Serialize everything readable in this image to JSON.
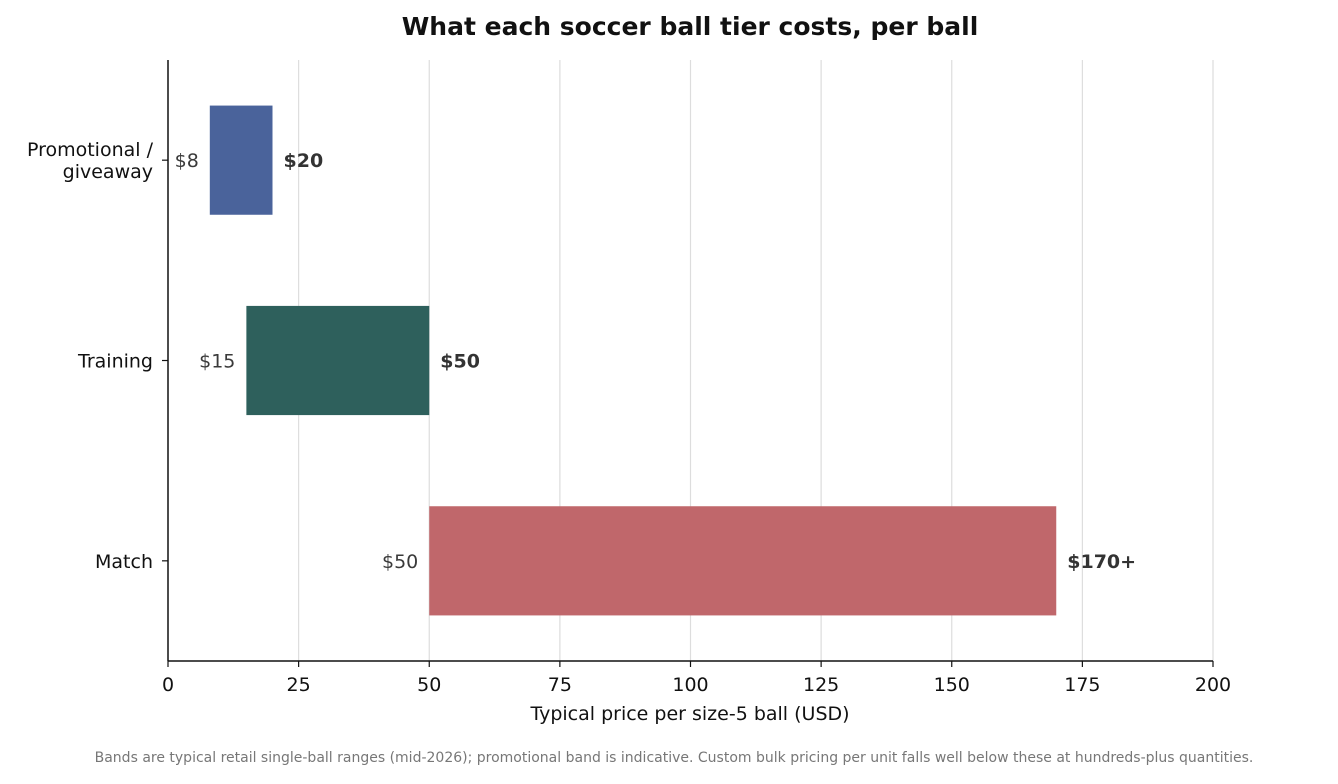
{
  "chart_data": {
    "type": "bar",
    "orientation": "horizontal",
    "title": "What each soccer ball tier costs, per ball",
    "xlabel": "Typical price per size-5 ball (USD)",
    "ylabel": "",
    "xlim": [
      0,
      200
    ],
    "xticks": [
      0,
      25,
      50,
      75,
      100,
      125,
      150,
      175,
      200
    ],
    "grid": "vertical",
    "categories": [
      {
        "label_lines": [
          "Promotional /",
          "giveaway"
        ],
        "low": 8,
        "high": 20,
        "low_label": "$8",
        "high_label": "$20",
        "color": "#4a639b"
      },
      {
        "label_lines": [
          "Training"
        ],
        "low": 15,
        "high": 50,
        "low_label": "$15",
        "high_label": "$50",
        "color": "#2e605c"
      },
      {
        "label_lines": [
          "Match"
        ],
        "low": 50,
        "high": 170,
        "low_label": "$50",
        "high_label": "$170+",
        "color": "#c0676b"
      }
    ],
    "footnote": "Bands are typical retail single-ball ranges (mid-2026); promotional band is indicative. Custom bulk pricing per unit falls well below these at hundreds-plus quantities."
  }
}
